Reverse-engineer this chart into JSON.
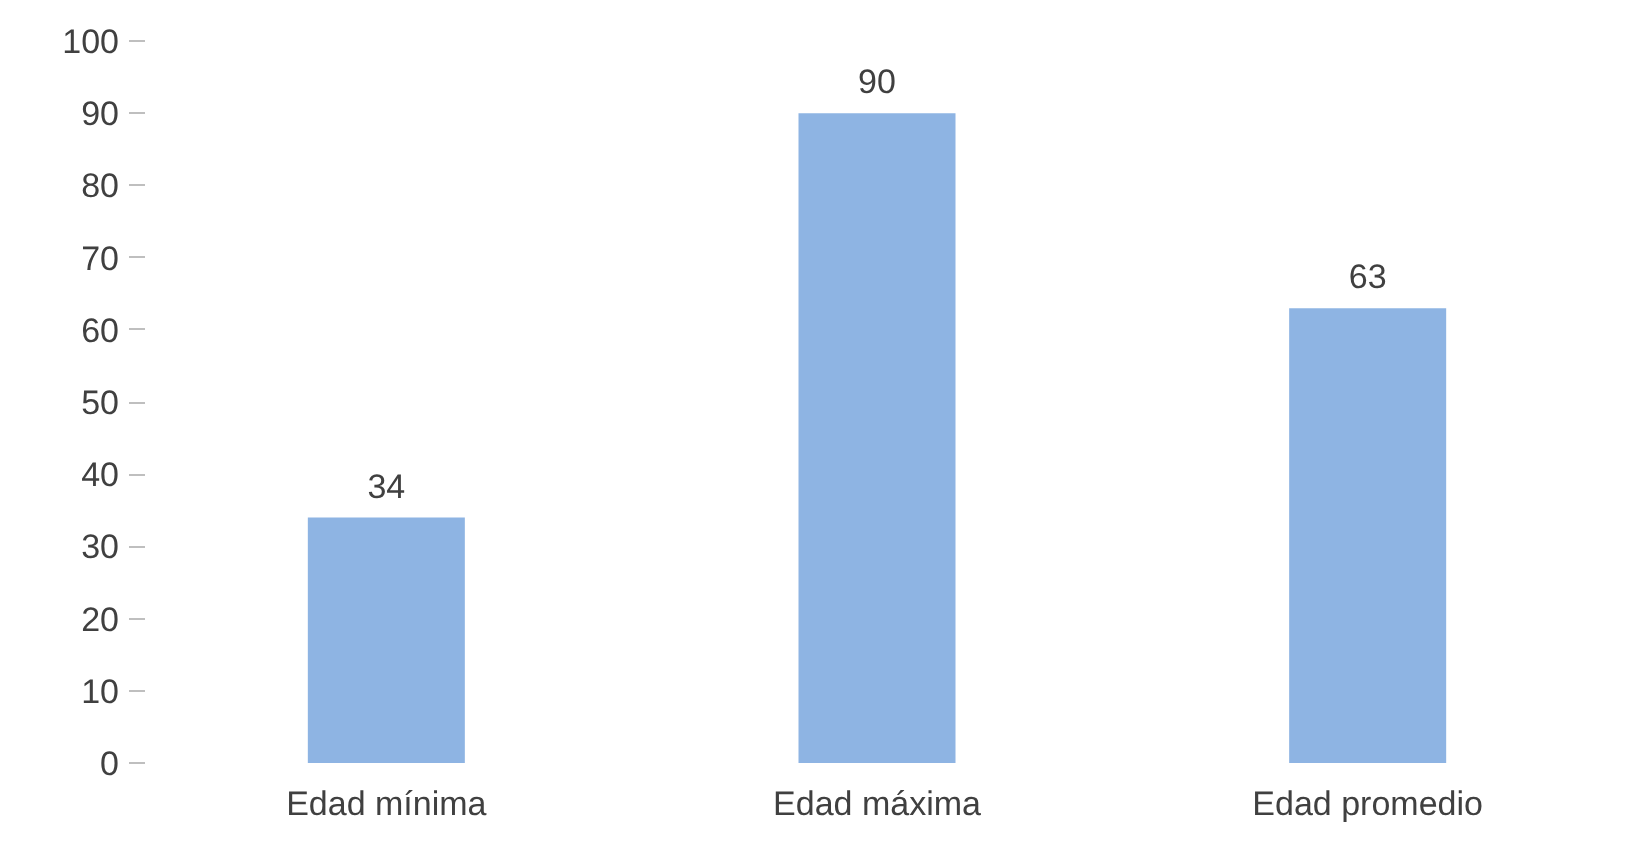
{
  "chart_data": {
    "type": "bar",
    "categories": [
      "Edad mínima",
      "Edad máxima",
      "Edad promedio"
    ],
    "values": [
      34,
      90,
      63
    ],
    "color": "#8eb4e3",
    "ylim": [
      0,
      100
    ],
    "yticks": [
      0,
      10,
      20,
      30,
      40,
      50,
      60,
      70,
      80,
      90,
      100
    ],
    "data_labels": true,
    "grid": false
  }
}
